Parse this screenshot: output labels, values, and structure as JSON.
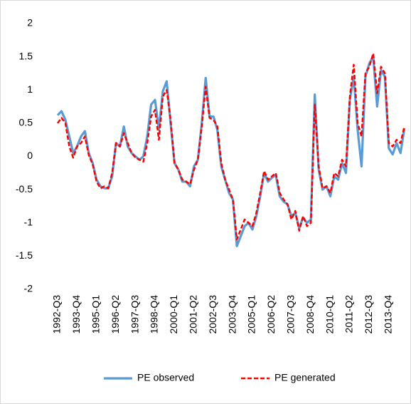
{
  "chart_data": {
    "type": "line",
    "categories": [
      "1992-Q3",
      null,
      null,
      null,
      null,
      "1993-Q4",
      null,
      null,
      null,
      null,
      "1995-Q1",
      null,
      null,
      null,
      null,
      "1996-Q2",
      null,
      null,
      null,
      null,
      "1997-Q3",
      null,
      null,
      null,
      null,
      "1998-Q4",
      null,
      null,
      null,
      null,
      "2000-Q1",
      null,
      null,
      null,
      null,
      "2001-Q2",
      null,
      null,
      null,
      null,
      "2002-Q3",
      null,
      null,
      null,
      null,
      "2003-Q4",
      null,
      null,
      null,
      null,
      "2005-Q1",
      null,
      null,
      null,
      null,
      "2006-Q2",
      null,
      null,
      null,
      null,
      "2007-Q3",
      null,
      null,
      null,
      null,
      "2008-Q4",
      null,
      null,
      null,
      null,
      "2010-Q1",
      null,
      null,
      null,
      null,
      "2011-Q2",
      null,
      null,
      null,
      null,
      "2012-Q3",
      null,
      null,
      null,
      null,
      "2013-Q4",
      null,
      null,
      null,
      null
    ],
    "series": [
      {
        "name": "PE observed",
        "color": "#5b9bd5",
        "dashed": false,
        "values": [
          0.62,
          0.68,
          0.55,
          0.3,
          0.05,
          0.15,
          0.3,
          0.38,
          0.05,
          -0.1,
          -0.35,
          -0.45,
          -0.48,
          -0.48,
          -0.3,
          0.2,
          0.15,
          0.45,
          0.15,
          0.05,
          0.0,
          -0.05,
          0.0,
          0.3,
          0.78,
          0.85,
          0.4,
          0.98,
          1.13,
          0.5,
          -0.1,
          -0.2,
          -0.38,
          -0.38,
          -0.45,
          -0.15,
          -0.05,
          0.5,
          1.18,
          0.6,
          0.6,
          0.4,
          -0.15,
          -0.35,
          -0.55,
          -0.65,
          -1.35,
          -1.2,
          -1.05,
          -1.0,
          -1.1,
          -0.9,
          -0.6,
          -0.25,
          -0.38,
          -0.32,
          -0.28,
          -0.6,
          -0.68,
          -0.72,
          -0.9,
          -0.85,
          -1.08,
          -0.92,
          -1.0,
          -0.95,
          0.93,
          -0.2,
          -0.5,
          -0.45,
          -0.6,
          -0.3,
          -0.35,
          -0.1,
          -0.25,
          0.85,
          1.2,
          0.4,
          -0.15,
          1.2,
          1.4,
          1.5,
          0.75,
          1.3,
          1.2,
          0.12,
          0.03,
          0.2,
          0.05,
          0.42
        ]
      },
      {
        "name": "PE generated",
        "color": "#ff0000",
        "dashed": true,
        "values": [
          0.5,
          0.58,
          0.5,
          0.15,
          -0.02,
          0.15,
          0.2,
          0.3,
          0.02,
          -0.12,
          -0.38,
          -0.48,
          -0.45,
          -0.48,
          -0.25,
          0.2,
          0.15,
          0.35,
          0.2,
          0.05,
          -0.02,
          -0.05,
          -0.08,
          0.2,
          0.6,
          0.7,
          0.25,
          0.9,
          1.0,
          0.55,
          -0.1,
          -0.2,
          -0.35,
          -0.38,
          -0.42,
          -0.2,
          -0.05,
          0.45,
          1.05,
          0.58,
          0.55,
          0.45,
          -0.1,
          -0.35,
          -0.5,
          -0.65,
          -1.25,
          -1.1,
          -0.95,
          -1.0,
          -1.05,
          -0.85,
          -0.55,
          -0.22,
          -0.35,
          -0.3,
          -0.25,
          -0.55,
          -0.65,
          -0.72,
          -0.95,
          -0.82,
          -1.12,
          -0.9,
          -1.05,
          -1.0,
          0.78,
          -0.15,
          -0.48,
          -0.45,
          -0.55,
          -0.25,
          -0.3,
          -0.05,
          -0.15,
          0.9,
          1.38,
          0.5,
          0.3,
          1.25,
          1.35,
          1.55,
          0.95,
          1.35,
          1.25,
          0.2,
          0.15,
          0.25,
          0.2,
          0.45
        ]
      }
    ],
    "ylim": [
      -2,
      2
    ],
    "yticks": [
      -2,
      -1.5,
      -1,
      -0.5,
      0,
      0.5,
      1,
      1.5,
      2
    ],
    "grid": false,
    "legend": "bottom"
  }
}
